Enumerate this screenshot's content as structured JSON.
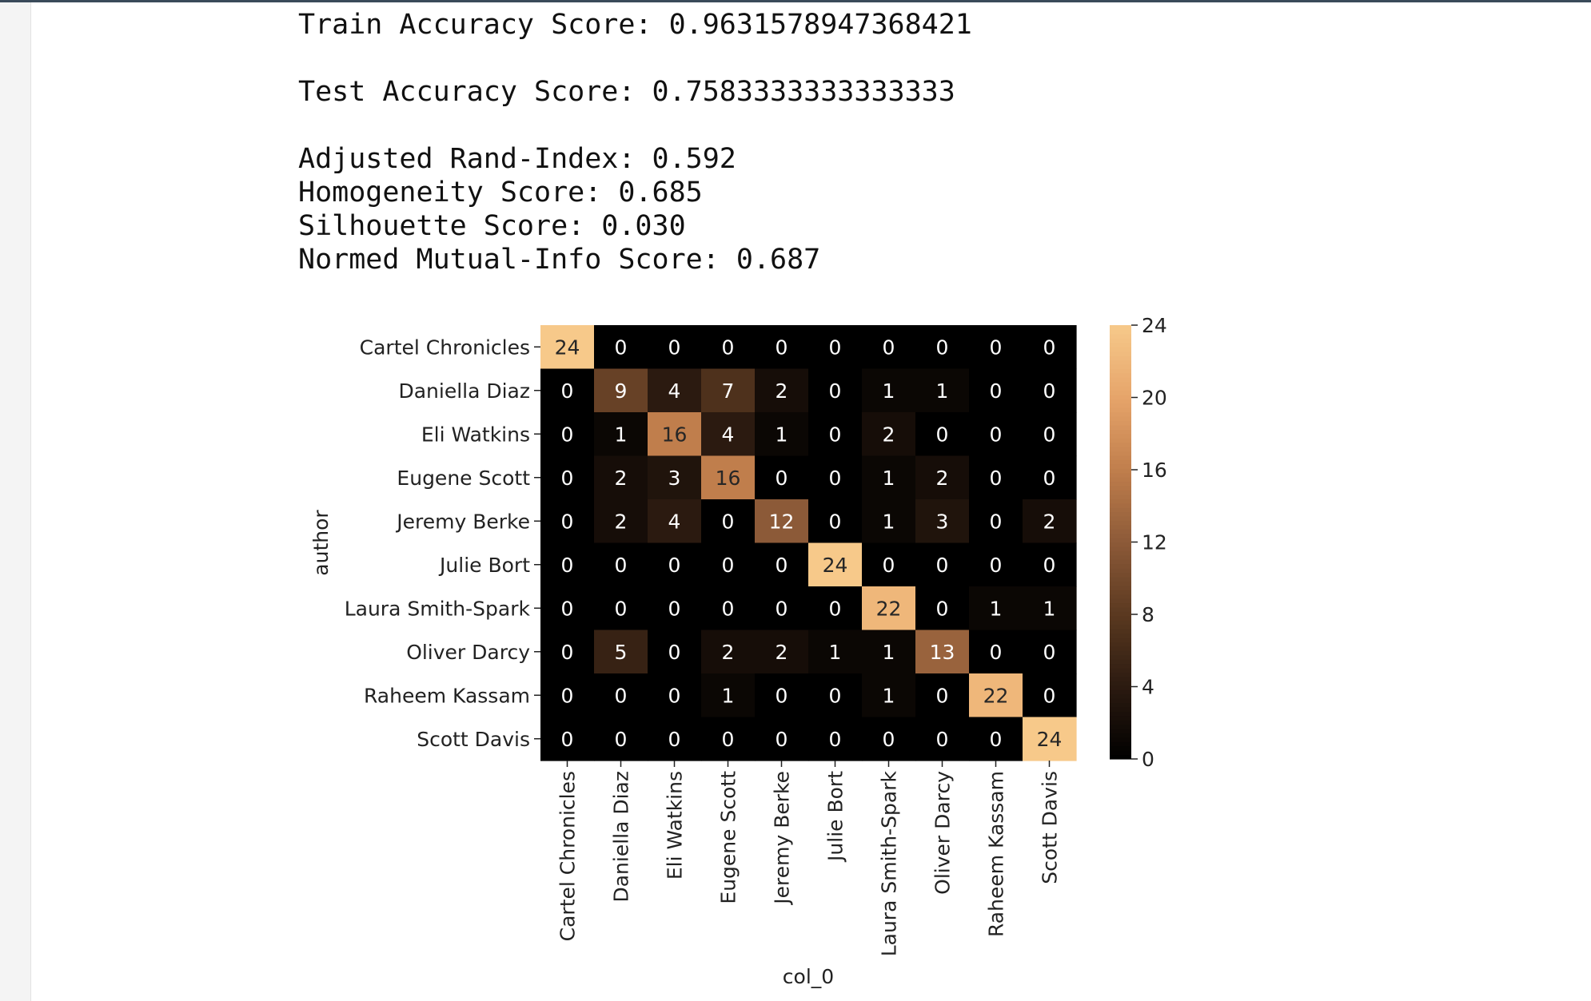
{
  "output": {
    "train": "Train Accuracy Score: 0.9631578947368421",
    "test": "Test Accuracy Score: 0.7583333333333333",
    "ari": "Adjusted Rand-Index: 0.592",
    "homogeneity": "Homogeneity Score: 0.685",
    "silhouette": "Silhouette Score: 0.030",
    "nmi": "Normed Mutual-Info Score: 0.687"
  },
  "colors": {
    "cmap": [
      "#000000",
      "#2b1a10",
      "#5a3920",
      "#8c5a38",
      "#c07e4c",
      "#e6a46a",
      "#f7c98a"
    ]
  },
  "chart_data": {
    "type": "heatmap",
    "title": "",
    "xlabel": "col_0",
    "ylabel": "author",
    "rows": [
      "Cartel Chronicles",
      "Daniella Diaz",
      "Eli Watkins",
      "Eugene Scott",
      "Jeremy Berke",
      "Julie Bort",
      "Laura Smith-Spark",
      "Oliver Darcy",
      "Raheem Kassam",
      "Scott Davis"
    ],
    "columns": [
      "Cartel Chronicles",
      "Daniella Diaz",
      "Eli Watkins",
      "Eugene Scott",
      "Jeremy Berke",
      "Julie Bort",
      "Laura Smith-Spark",
      "Oliver Darcy",
      "Raheem Kassam",
      "Scott Davis"
    ],
    "values": [
      [
        24,
        0,
        0,
        0,
        0,
        0,
        0,
        0,
        0,
        0
      ],
      [
        0,
        9,
        4,
        7,
        2,
        0,
        1,
        1,
        0,
        0
      ],
      [
        0,
        1,
        16,
        4,
        1,
        0,
        2,
        0,
        0,
        0
      ],
      [
        0,
        2,
        3,
        16,
        0,
        0,
        1,
        2,
        0,
        0
      ],
      [
        0,
        2,
        4,
        0,
        12,
        0,
        1,
        3,
        0,
        2
      ],
      [
        0,
        0,
        0,
        0,
        0,
        24,
        0,
        0,
        0,
        0
      ],
      [
        0,
        0,
        0,
        0,
        0,
        0,
        22,
        0,
        1,
        1
      ],
      [
        0,
        5,
        0,
        2,
        2,
        1,
        1,
        13,
        0,
        0
      ],
      [
        0,
        0,
        0,
        1,
        0,
        0,
        1,
        0,
        22,
        0
      ],
      [
        0,
        0,
        0,
        0,
        0,
        0,
        0,
        0,
        0,
        24
      ]
    ],
    "colorbar": {
      "range": [
        0,
        24
      ],
      "ticks": [
        0,
        4,
        8,
        12,
        16,
        20,
        24
      ]
    }
  }
}
